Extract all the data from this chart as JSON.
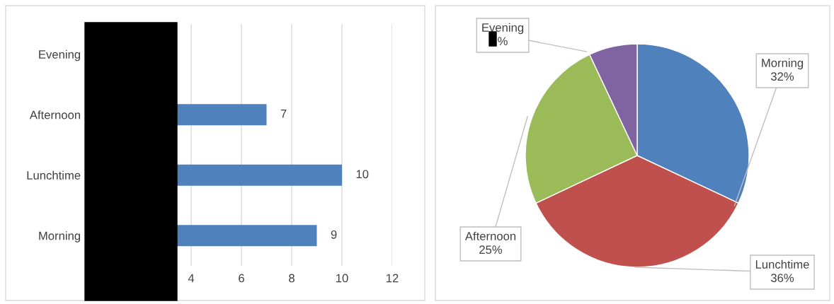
{
  "chart_data": [
    {
      "type": "bar",
      "orientation": "horizontal",
      "categories": [
        "Evening",
        "Afternoon",
        "Lunchtime",
        "Morning"
      ],
      "values": [
        null,
        7,
        10,
        9
      ],
      "color": "#4f81bd",
      "xlim": [
        0,
        12
      ],
      "xticks": [
        4,
        6,
        8,
        10,
        12
      ],
      "grid": "x",
      "data_labels": true
    },
    {
      "type": "pie",
      "categories": [
        "Morning",
        "Lunchtime",
        "Afternoon",
        "Evening"
      ],
      "values": [
        32,
        36,
        25,
        7
      ],
      "colors": [
        "#4f81bd",
        "#c0504d",
        "#9bbb59",
        "#8064a2"
      ],
      "value_labels": [
        "32%",
        "36%",
        "25%",
        "%"
      ]
    }
  ]
}
